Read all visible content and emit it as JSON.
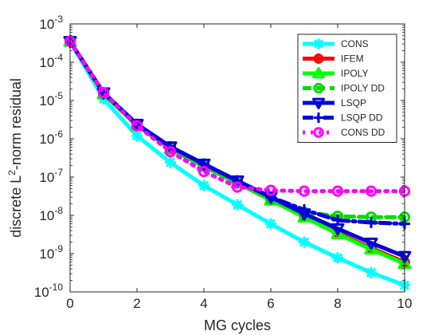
{
  "chart_data": {
    "type": "line",
    "xlabel": "MG cycles",
    "ylabel": {
      "prefix": "discrete L",
      "sup": "2",
      "suffix": "-norm residual"
    },
    "xlim": [
      0,
      10
    ],
    "ylim": [
      1e-10,
      0.001
    ],
    "yscale": "log",
    "grid": false,
    "legend_position": "top-right",
    "x_ticks": [
      0,
      2,
      4,
      6,
      8,
      10
    ],
    "y_ticks": [
      {
        "value": 0.001,
        "base": "10",
        "exp": "-3"
      },
      {
        "value": 0.0001,
        "base": "10",
        "exp": "-4"
      },
      {
        "value": 1e-05,
        "base": "10",
        "exp": "-5"
      },
      {
        "value": 1e-06,
        "base": "10",
        "exp": "-6"
      },
      {
        "value": 1e-07,
        "base": "10",
        "exp": "-7"
      },
      {
        "value": 1e-08,
        "base": "10",
        "exp": "-8"
      },
      {
        "value": 1e-09,
        "base": "10",
        "exp": "-9"
      },
      {
        "value": 1e-10,
        "base": "10",
        "exp": "-10"
      }
    ],
    "x": [
      0,
      1,
      2,
      3,
      4,
      5,
      6,
      7,
      8,
      9,
      10
    ],
    "series": [
      {
        "name": "CONS",
        "color": "#00ffff",
        "dash": "solid",
        "marker": "star",
        "values": [
          0.00035,
          1.1e-05,
          1.2e-06,
          2.4e-07,
          6e-08,
          1.9e-08,
          6e-09,
          2e-09,
          7.8e-10,
          3.2e-10,
          1.5e-10
        ]
      },
      {
        "name": "IFEM",
        "color": "#ff0000",
        "dash": "solid",
        "marker": "circle-star",
        "values": [
          0.00035,
          1.5e-05,
          2.2e-06,
          5.5e-07,
          1.9e-07,
          7e-08,
          2.5e-08,
          9.5e-09,
          3.5e-09,
          1.4e-09,
          6e-10
        ]
      },
      {
        "name": "IPOLY",
        "color": "#00ff00",
        "dash": "solid",
        "marker": "triangle-up",
        "values": [
          0.00035,
          1.5e-05,
          2.2e-06,
          5.5e-07,
          1.9e-07,
          7e-08,
          2.5e-08,
          9e-09,
          3.3e-09,
          1.3e-09,
          5.5e-10
        ]
      },
      {
        "name": "IPOLY DD",
        "color": "#00dd00",
        "dash": "dashed",
        "marker": "circle",
        "values": [
          0.00035,
          1.5e-05,
          2.2e-06,
          5.5e-07,
          1.9e-07,
          7e-08,
          2.6e-08,
          1.2e-08,
          9.5e-09,
          9e-09,
          9e-09
        ]
      },
      {
        "name": "LSQP",
        "color": "#0000dd",
        "dash": "solid",
        "marker": "triangle-down",
        "values": [
          0.00035,
          1.6e-05,
          2.4e-06,
          6.2e-07,
          2.2e-07,
          8e-08,
          3e-08,
          1.1e-08,
          4.5e-09,
          1.9e-09,
          8.5e-10
        ]
      },
      {
        "name": "LSQP DD",
        "color": "#0000dd",
        "dash": "dashdot",
        "marker": "plus",
        "values": [
          0.00035,
          1.6e-05,
          2.4e-06,
          6.2e-07,
          2.2e-07,
          8e-08,
          3e-08,
          1.4e-08,
          7.5e-09,
          6.5e-09,
          6e-09
        ]
      },
      {
        "name": "CONS DD",
        "color": "#ff00ff",
        "dash": "dotted",
        "marker": "circle",
        "values": [
          0.00035,
          1.6e-05,
          2.2e-06,
          4.6e-07,
          1.4e-07,
          5.5e-08,
          4.5e-08,
          4.3e-08,
          4.3e-08,
          4.3e-08,
          4.3e-08
        ]
      }
    ]
  }
}
